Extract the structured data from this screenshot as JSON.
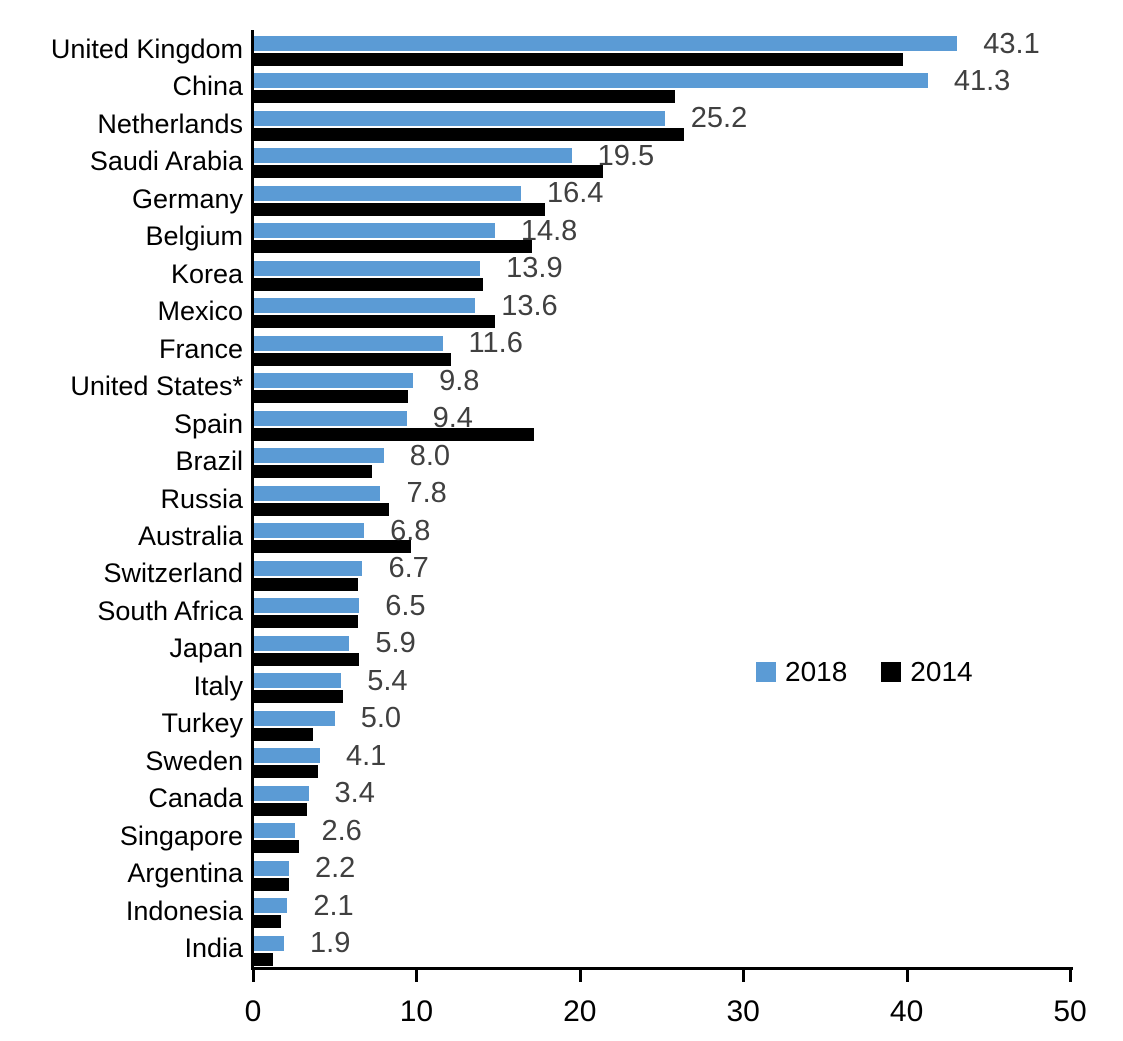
{
  "chart_data": {
    "type": "bar",
    "orientation": "horizontal",
    "title": "",
    "xlabel": "",
    "ylabel": "",
    "xlim": [
      0,
      50
    ],
    "x_ticks": [
      0,
      10,
      20,
      30,
      40,
      50
    ],
    "grid": false,
    "legend_position": "middle-right",
    "categories": [
      "United Kingdom",
      "China",
      "Netherlands",
      "Saudi Arabia",
      "Germany",
      "Belgium",
      "Korea",
      "Mexico",
      "France",
      "United States*",
      "Spain",
      "Brazil",
      "Russia",
      "Australia",
      "Switzerland",
      "South Africa",
      "Japan",
      "Italy",
      "Turkey",
      "Sweden",
      "Canada",
      "Singapore",
      "Argentina",
      "Indonesia",
      "India"
    ],
    "series": [
      {
        "name": "2018",
        "color": "#5B9BD5",
        "values": [
          43.1,
          41.3,
          25.2,
          19.5,
          16.4,
          14.8,
          13.9,
          13.6,
          11.6,
          9.8,
          9.4,
          8.0,
          7.8,
          6.8,
          6.7,
          6.5,
          5.9,
          5.4,
          5.0,
          4.1,
          3.4,
          2.6,
          2.2,
          2.1,
          1.9
        ]
      },
      {
        "name": "2014",
        "color": "#000000",
        "values": [
          39.8,
          25.8,
          26.4,
          21.4,
          17.9,
          17.1,
          14.1,
          14.8,
          12.1,
          9.5,
          17.2,
          7.3,
          8.3,
          9.7,
          6.4,
          6.4,
          6.5,
          5.5,
          3.7,
          4.0,
          3.3,
          2.8,
          2.2,
          1.7,
          1.2
        ]
      }
    ],
    "data_labels": {
      "series": "2018",
      "color": "#404040",
      "values": [
        "43.1",
        "41.3",
        "25.2",
        "19.5",
        "16.4",
        "14.8",
        "13.9",
        "13.6",
        "11.6",
        "9.8",
        "9.4",
        "8.0",
        "7.8",
        "6.8",
        "6.7",
        "6.5",
        "5.9",
        "5.4",
        "5.0",
        "4.1",
        "3.4",
        "2.6",
        "2.2",
        "2.1",
        "1.9"
      ]
    }
  }
}
